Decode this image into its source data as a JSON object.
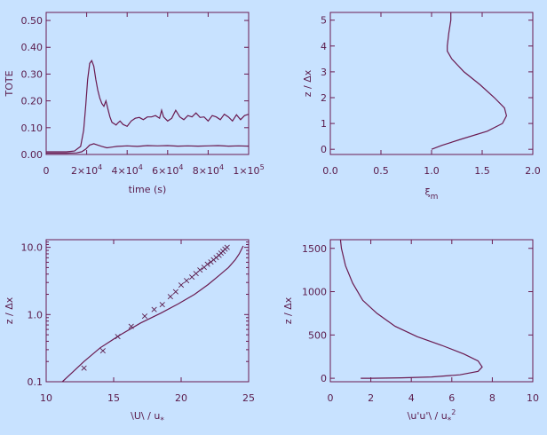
{
  "colors": {
    "background": "#c8e2ff",
    "ink": "#6a1a50"
  },
  "chart_data": [
    {
      "type": "line",
      "ylabel": "TOTE",
      "xlabel": "time (s)",
      "xlim": [
        0,
        100000
      ],
      "ylim": [
        0.0,
        0.53
      ],
      "xtick_labels": [
        {
          "v": 0,
          "base": "0",
          "exp": ""
        },
        {
          "v": 20000,
          "base": "2×10",
          "exp": "4"
        },
        {
          "v": 40000,
          "base": "4×10",
          "exp": "4"
        },
        {
          "v": 60000,
          "base": "6×10",
          "exp": "4"
        },
        {
          "v": 80000,
          "base": "8×10",
          "exp": "4"
        },
        {
          "v": 100000,
          "base": "1×10",
          "exp": "5"
        }
      ],
      "ytick_labels": [
        {
          "v": 0.0,
          "text": "0.00"
        },
        {
          "v": 0.1,
          "text": "0.10"
        },
        {
          "v": 0.2,
          "text": "0.20"
        },
        {
          "v": 0.3,
          "text": "0.30"
        },
        {
          "v": 0.4,
          "text": "0.40"
        },
        {
          "v": 0.5,
          "text": "0.50"
        }
      ],
      "series": [
        {
          "x": [
            0,
            10000,
            14000,
            17000,
            18500,
            19500,
            20500,
            21500,
            22500,
            23500,
            24500,
            25500,
            26500,
            27500,
            28500,
            29500,
            30500,
            31500,
            32500,
            33500,
            34500,
            35500,
            36500,
            38000,
            40000,
            42000,
            44000,
            46000,
            48000,
            50000,
            52000,
            54000,
            56000,
            57000,
            58000,
            60000,
            62000,
            64000,
            66000,
            68000,
            70000,
            72000,
            74000,
            76000,
            78000,
            80000,
            82000,
            84000,
            86000,
            88000,
            90000,
            92000,
            94000,
            96000,
            98000,
            100000
          ],
          "y": [
            0.01,
            0.01,
            0.013,
            0.03,
            0.09,
            0.18,
            0.28,
            0.34,
            0.35,
            0.33,
            0.28,
            0.24,
            0.21,
            0.19,
            0.18,
            0.2,
            0.17,
            0.14,
            0.12,
            0.115,
            0.11,
            0.118,
            0.125,
            0.112,
            0.105,
            0.125,
            0.135,
            0.138,
            0.13,
            0.14,
            0.14,
            0.145,
            0.135,
            0.165,
            0.14,
            0.125,
            0.135,
            0.165,
            0.14,
            0.13,
            0.145,
            0.14,
            0.155,
            0.138,
            0.14,
            0.125,
            0.145,
            0.14,
            0.13,
            0.15,
            0.14,
            0.125,
            0.148,
            0.13,
            0.145,
            0.15
          ]
        },
        {
          "x": [
            0,
            10000,
            15000,
            17500,
            19500,
            21500,
            23500,
            25500,
            27500,
            30000,
            35000,
            40000,
            45000,
            50000,
            55000,
            60000,
            65000,
            70000,
            75000,
            80000,
            85000,
            90000,
            95000,
            100000
          ],
          "y": [
            0.005,
            0.005,
            0.006,
            0.01,
            0.02,
            0.035,
            0.04,
            0.035,
            0.03,
            0.025,
            0.03,
            0.032,
            0.03,
            0.033,
            0.032,
            0.033,
            0.031,
            0.032,
            0.031,
            0.032,
            0.033,
            0.031,
            0.032,
            0.031
          ]
        }
      ]
    },
    {
      "type": "line",
      "ylabel": "z / Δx",
      "xlabel_base": "ξ",
      "xlabel_sub": "m",
      "xlim": [
        0,
        2
      ],
      "ylim": [
        -0.2,
        5.3
      ],
      "xtick_labels": [
        {
          "v": 0,
          "text": "0.0"
        },
        {
          "v": 0.5,
          "text": "0.5"
        },
        {
          "v": 1.0,
          "text": "1.0"
        },
        {
          "v": 1.5,
          "text": "1.5"
        },
        {
          "v": 2.0,
          "text": "2.0"
        }
      ],
      "ytick_labels": [
        {
          "v": 0,
          "text": "0"
        },
        {
          "v": 1,
          "text": "1"
        },
        {
          "v": 2,
          "text": "2"
        },
        {
          "v": 3,
          "text": "3"
        },
        {
          "v": 4,
          "text": "4"
        },
        {
          "v": 5,
          "text": "5"
        }
      ],
      "series": [
        {
          "x": [
            1.19,
            1.19,
            1.17,
            1.155,
            1.155,
            1.2,
            1.32,
            1.48,
            1.62,
            1.72,
            1.74,
            1.7,
            1.55,
            1.3,
            1.1,
            1.0
          ],
          "y": [
            5.3,
            5.0,
            4.5,
            4.0,
            3.8,
            3.5,
            3.0,
            2.5,
            2.0,
            1.6,
            1.3,
            1.0,
            0.7,
            0.4,
            0.15,
            0.0
          ]
        }
      ]
    },
    {
      "type": "line",
      "ylabel": "z / Δx",
      "xlabel": "\\U\\ / u",
      "xlabel_sub": "*",
      "xlim": [
        10,
        25
      ],
      "ylim": [
        0.1,
        13
      ],
      "yscale": "log",
      "xtick_labels": [
        {
          "v": 10,
          "text": "10"
        },
        {
          "v": 15,
          "text": "15"
        },
        {
          "v": 20,
          "text": "20"
        },
        {
          "v": 25,
          "text": "25"
        }
      ],
      "ytick_labels": [
        {
          "v": 0.1,
          "text": "0.1"
        },
        {
          "v": 1.0,
          "text": "1.0"
        },
        {
          "v": 10.0,
          "text": "10.0"
        }
      ],
      "series": [
        {
          "x": [
            11.2,
            11.8,
            12.8,
            14.0,
            15.5,
            17.0,
            18.5,
            19.8,
            21.0,
            22.0,
            22.8,
            23.5,
            24.0,
            24.3,
            24.6
          ],
          "y": [
            0.1,
            0.13,
            0.2,
            0.32,
            0.5,
            0.75,
            1.05,
            1.45,
            2.0,
            2.8,
            3.8,
            5.0,
            6.5,
            8.0,
            10.5
          ]
        }
      ],
      "markers": {
        "symbol": "×",
        "x": [
          12.8,
          14.2,
          15.3,
          16.3,
          17.3,
          18.0,
          18.6,
          19.2,
          19.6,
          20.0,
          20.4,
          20.8,
          21.1,
          21.4,
          21.7,
          21.95,
          22.2,
          22.4,
          22.6,
          22.8,
          22.95,
          23.1,
          23.25,
          23.4
        ],
        "y": [
          0.16,
          0.29,
          0.47,
          0.67,
          0.95,
          1.2,
          1.42,
          1.85,
          2.2,
          2.75,
          3.2,
          3.65,
          4.1,
          4.6,
          5.1,
          5.6,
          6.1,
          6.6,
          7.1,
          7.6,
          8.2,
          8.8,
          9.4,
          10.0
        ]
      }
    },
    {
      "type": "line",
      "ylabel": "z / Δx",
      "xlabel": "\\u'u'\\ / u",
      "xlabel_sub": "*",
      "xlabel_sup": "2",
      "xlim": [
        0,
        10
      ],
      "ylim": [
        -40,
        1600
      ],
      "xtick_labels": [
        {
          "v": 0,
          "text": "0"
        },
        {
          "v": 2,
          "text": "2"
        },
        {
          "v": 4,
          "text": "4"
        },
        {
          "v": 6,
          "text": "6"
        },
        {
          "v": 8,
          "text": "8"
        },
        {
          "v": 10,
          "text": "10"
        }
      ],
      "ytick_labels": [
        {
          "v": 0,
          "text": "0"
        },
        {
          "v": 500,
          "text": "500"
        },
        {
          "v": 1000,
          "text": "1000"
        },
        {
          "v": 1500,
          "text": "1500"
        }
      ],
      "series": [
        {
          "x": [
            0.5,
            0.55,
            0.75,
            1.1,
            1.6,
            2.3,
            3.2,
            4.3,
            5.5,
            6.6,
            7.3,
            7.5,
            7.3,
            6.4,
            5.0,
            3.5,
            2.0,
            1.5
          ],
          "y": [
            1600,
            1500,
            1300,
            1100,
            900,
            750,
            600,
            480,
            380,
            280,
            200,
            130,
            80,
            40,
            15,
            5,
            0,
            0
          ]
        }
      ]
    }
  ]
}
